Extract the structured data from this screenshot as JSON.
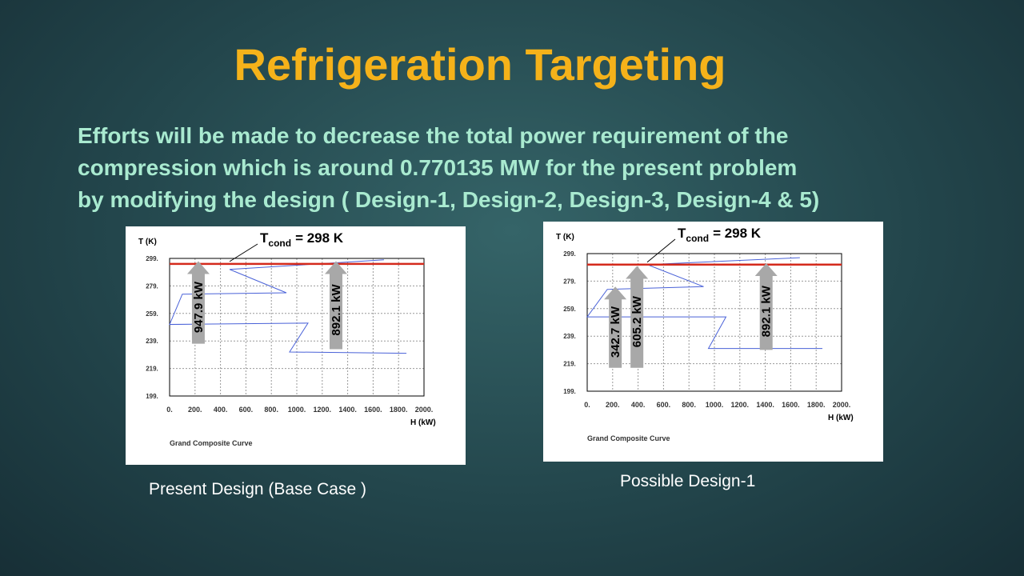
{
  "slide": {
    "title": "Refrigeration Targeting",
    "body": [
      "Efforts will be made to decrease  the total power requirement of the",
      "compression which is around 0.770135 MW for the present problem",
      "by modifying  the design ( Design-1, Design-2, Design-3, Design-4 & 5)"
    ],
    "captions": [
      "Present Design (Base Case )",
      "Possible Design-1"
    ]
  },
  "chart_data": [
    {
      "type": "line",
      "title": "Grand Composite Curve",
      "x_label": "H (kW)",
      "y_label": "T (K)",
      "xlim": [
        0,
        2000
      ],
      "ylim": [
        199,
        299
      ],
      "xticks": [
        {
          "value": 0,
          "label": "0."
        },
        {
          "value": 200,
          "label": "200."
        },
        {
          "value": 400,
          "label": "400."
        },
        {
          "value": 600,
          "label": "600."
        },
        {
          "value": 800,
          "label": "800."
        },
        {
          "value": 1000,
          "label": "1000."
        },
        {
          "value": 1200,
          "label": "1200."
        },
        {
          "value": 1400,
          "label": "1400."
        },
        {
          "value": 1600,
          "label": "1600."
        },
        {
          "value": 1800,
          "label": "1800."
        },
        {
          "value": 2000,
          "label": "2000."
        }
      ],
      "yticks": [
        {
          "value": 199,
          "label": "199."
        },
        {
          "value": 219,
          "label": "219."
        },
        {
          "value": 239,
          "label": "239."
        },
        {
          "value": 259,
          "label": "259."
        },
        {
          "value": 279,
          "label": "279."
        },
        {
          "value": 299,
          "label": "299."
        }
      ],
      "grid": true,
      "series": [
        {
          "color": "#4a62d8",
          "x": [
            1685,
            472,
            918,
            100,
            0,
            1088,
            943,
            1862
          ],
          "values": [
            298,
            291,
            274,
            273,
            251,
            252,
            231,
            230
          ]
        },
        {
          "color": "#d42a1c",
          "x": [
            0,
            2000
          ],
          "values": [
            295,
            295
          ]
        }
      ],
      "condenser": {
        "symbol": "T",
        "sub": "cond",
        "rest": "= 298 K"
      },
      "arrows": [
        {
          "text": "947.9 kW",
          "x": 226,
          "from": 237,
          "to": 297
        },
        {
          "text": "892.1 kW",
          "x": 1308,
          "from": 233,
          "to": 297
        }
      ]
    },
    {
      "type": "line",
      "title": "Grand Composite Curve",
      "x_label": "H (kW)",
      "y_label": "T (K)",
      "xlim": [
        0,
        2000
      ],
      "ylim": [
        199,
        299
      ],
      "xticks": [
        {
          "value": 0,
          "label": "0."
        },
        {
          "value": 200,
          "label": "200."
        },
        {
          "value": 400,
          "label": "400."
        },
        {
          "value": 600,
          "label": "600."
        },
        {
          "value": 800,
          "label": "800."
        },
        {
          "value": 1000,
          "label": "1000."
        },
        {
          "value": 1200,
          "label": "1200."
        },
        {
          "value": 1400,
          "label": "1400."
        },
        {
          "value": 1600,
          "label": "1600."
        },
        {
          "value": 1800,
          "label": "1800."
        },
        {
          "value": 2000,
          "label": "2000."
        }
      ],
      "yticks": [
        {
          "value": 199,
          "label": "199."
        },
        {
          "value": 219,
          "label": "219."
        },
        {
          "value": 239,
          "label": "239."
        },
        {
          "value": 259,
          "label": "259."
        },
        {
          "value": 279,
          "label": "279."
        },
        {
          "value": 299,
          "label": "299."
        }
      ],
      "grid": true,
      "series": [
        {
          "color": "#4a62d8",
          "x": [
            1672,
            473,
            915,
            158,
            0,
            1091,
            953,
            1849
          ],
          "values": [
            296,
            291,
            275,
            273,
            253,
            253,
            230,
            230
          ]
        },
        {
          "color": "#d42a1c",
          "x": [
            0,
            2000
          ],
          "values": [
            291,
            291
          ]
        }
      ],
      "condenser": {
        "symbol": "T",
        "sub": "cond",
        "rest": "= 298 K"
      },
      "arrows": [
        {
          "text": "342.7 kW",
          "x": 221,
          "from": 216,
          "to": 275
        },
        {
          "text": "605.2 kW",
          "x": 391,
          "from": 216,
          "to": 290
        },
        {
          "text": "892.1 kW",
          "x": 1407,
          "from": 229,
          "to": 292
        }
      ]
    }
  ]
}
